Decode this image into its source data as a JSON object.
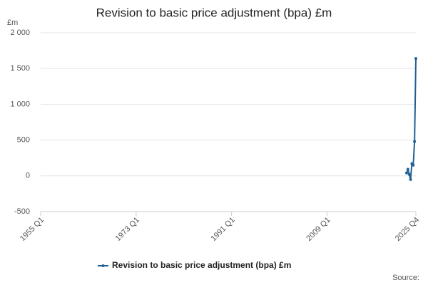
{
  "chart_data": {
    "type": "line",
    "title": "Revision to basic price adjustment (bpa) £m",
    "y_label": "£m",
    "source": "Source:",
    "x": [
      2024.0,
      2024.25,
      2024.5,
      2024.75,
      2025.0,
      2025.25,
      2025.5,
      2025.75
    ],
    "series": [
      {
        "name": "Revision to basic price adjustment (bpa) £m",
        "color": "#206095",
        "values": [
          40,
          90,
          20,
          -50,
          170,
          150,
          480,
          1640
        ]
      }
    ],
    "xlim": [
      1955,
      2025.75
    ],
    "xticks": [
      {
        "value": 1955,
        "label": "1955 Q1"
      },
      {
        "value": 1973,
        "label": "1973 Q1"
      },
      {
        "value": 1991,
        "label": "1991 Q1"
      },
      {
        "value": 2009,
        "label": "2009 Q1"
      },
      {
        "value": 2025.75,
        "label": "2025 Q4"
      }
    ],
    "ylim": [
      -500,
      2000
    ],
    "yticks": [
      -500,
      0,
      500,
      {
        "value": 1000,
        "label": "1 000"
      },
      {
        "value": 1500,
        "label": "1 500"
      },
      {
        "value": 2000,
        "label": "2 000"
      }
    ],
    "grid": true
  }
}
